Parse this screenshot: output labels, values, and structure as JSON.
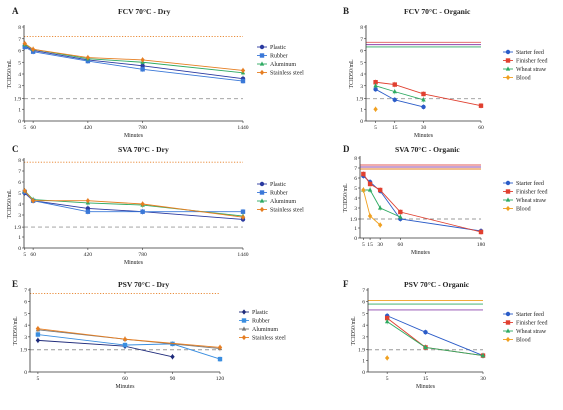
{
  "chart_data": [
    {
      "panel": "A",
      "title": "FCV 70°C - Dry",
      "type": "line",
      "xlabel": "Minutes",
      "ylabel": "TCID50/mL",
      "xlim": [
        0,
        1440
      ],
      "ylim": [
        0,
        8
      ],
      "xticks": [
        5,
        60,
        420,
        780,
        1440
      ],
      "xtick_labels": [
        "5",
        "60",
        "420",
        "780",
        "1440"
      ],
      "yticks": [
        0,
        1,
        1.9,
        3,
        4,
        5,
        6,
        7,
        8
      ],
      "ytick_labels": [
        "0",
        "1",
        "1.9",
        "3",
        "4",
        "5",
        "6",
        "7",
        "8"
      ],
      "ref_lines": [
        {
          "y": 7.2,
          "color": "#e67e22",
          "style": "dotted"
        },
        {
          "y": 1.9,
          "color": "#999999",
          "style": "dashed"
        }
      ],
      "series": [
        {
          "name": "Plastic",
          "color": "#2b3aa0",
          "marker": "circle",
          "x": [
            5,
            60,
            420,
            780,
            1440
          ],
          "y": [
            6.4,
            6.0,
            5.2,
            4.7,
            3.6
          ]
        },
        {
          "name": "Rubber",
          "color": "#3a78d8",
          "marker": "square",
          "x": [
            5,
            60,
            420,
            780,
            1440
          ],
          "y": [
            6.3,
            5.9,
            5.1,
            4.4,
            3.4
          ]
        },
        {
          "name": "Aluminum",
          "color": "#2eaa62",
          "marker": "triangle",
          "x": [
            5,
            60,
            420,
            780,
            1440
          ],
          "y": [
            6.5,
            6.1,
            5.3,
            5.0,
            4.1
          ]
        },
        {
          "name": "Stainless steel",
          "color": "#e67e22",
          "marker": "diamond",
          "x": [
            5,
            60,
            420,
            780,
            1440
          ],
          "y": [
            6.6,
            6.1,
            5.4,
            5.2,
            4.3
          ]
        }
      ]
    },
    {
      "panel": "B",
      "title": "FCV 70°C - Organic",
      "type": "line",
      "xlabel": "Minutes",
      "ylabel": "TCID50/mL",
      "xlim": [
        0,
        60
      ],
      "ylim": [
        0,
        8
      ],
      "xticks": [
        5,
        15,
        30,
        60
      ],
      "xtick_labels": [
        "5",
        "15",
        "30",
        "60"
      ],
      "yticks": [
        0,
        1,
        1.9,
        3,
        4,
        5,
        6,
        7,
        8
      ],
      "ytick_labels": [
        "0",
        "1",
        "1.9",
        "3",
        "4",
        "5",
        "6",
        "7",
        "8"
      ],
      "ref_lines": [
        {
          "y": 6.7,
          "color": "#e05a5a",
          "style": "solid"
        },
        {
          "y": 6.5,
          "color": "#8e44ad",
          "style": "solid"
        },
        {
          "y": 6.3,
          "color": "#2eaa62",
          "style": "solid"
        },
        {
          "y": 1.9,
          "color": "#999999",
          "style": "dashed"
        }
      ],
      "series": [
        {
          "name": "Starter feed",
          "color": "#2b5cc8",
          "marker": "circle",
          "x": [
            5,
            15,
            30
          ],
          "y": [
            2.7,
            1.8,
            1.2
          ]
        },
        {
          "name": "Finisher feed",
          "color": "#e04030",
          "marker": "square",
          "x": [
            5,
            15,
            30,
            60
          ],
          "y": [
            3.3,
            3.1,
            2.3,
            1.3
          ]
        },
        {
          "name": "Wheat straw",
          "color": "#2eaa62",
          "marker": "triangle",
          "x": [
            5,
            15,
            30
          ],
          "y": [
            3.0,
            2.5,
            1.8
          ]
        },
        {
          "name": "Blood",
          "color": "#f0a020",
          "marker": "diamond",
          "x": [
            5
          ],
          "y": [
            1.0
          ]
        }
      ]
    },
    {
      "panel": "C",
      "title": "SVA 70°C - Dry",
      "type": "line",
      "xlabel": "Minutes",
      "ylabel": "TCID50/mL",
      "xlim": [
        0,
        1440
      ],
      "ylim": [
        0,
        8
      ],
      "xticks": [
        5,
        60,
        420,
        780,
        1440
      ],
      "xtick_labels": [
        "5",
        "60",
        "420",
        "780",
        "1440"
      ],
      "yticks": [
        0,
        1,
        1.9,
        3,
        4,
        5,
        6,
        7,
        8
      ],
      "ytick_labels": [
        "0",
        "1",
        "1.9",
        "3",
        "4",
        "5",
        "6",
        "7",
        "8"
      ],
      "ref_lines": [
        {
          "y": 7.8,
          "color": "#e67e22",
          "style": "dotted"
        },
        {
          "y": 1.9,
          "color": "#999999",
          "style": "dashed"
        }
      ],
      "series": [
        {
          "name": "Plastic",
          "color": "#2b3aa0",
          "marker": "circle",
          "x": [
            5,
            60,
            420,
            780,
            1440
          ],
          "y": [
            5.0,
            4.3,
            3.6,
            3.3,
            2.6
          ]
        },
        {
          "name": "Rubber",
          "color": "#3a78d8",
          "marker": "square",
          "x": [
            5,
            60,
            420,
            780,
            1440
          ],
          "y": [
            5.1,
            4.3,
            3.3,
            3.3,
            3.3
          ]
        },
        {
          "name": "Aluminum",
          "color": "#2eaa62",
          "marker": "triangle",
          "x": [
            5,
            60,
            420,
            780,
            1440
          ],
          "y": [
            5.2,
            4.4,
            4.1,
            3.9,
            2.9
          ]
        },
        {
          "name": "Stainless steel",
          "color": "#e67e22",
          "marker": "diamond",
          "x": [
            5,
            60,
            420,
            780,
            1440
          ],
          "y": [
            5.2,
            4.3,
            4.3,
            4.0,
            2.8
          ]
        }
      ]
    },
    {
      "panel": "D",
      "title": "SVA 70°C - Organic",
      "type": "line",
      "xlabel": "Minutes",
      "ylabel": "TCID50/mL",
      "xlim": [
        0,
        180
      ],
      "ylim": [
        0,
        8
      ],
      "xticks": [
        5,
        15,
        30,
        60,
        180
      ],
      "xtick_labels": [
        "5",
        "15",
        "30",
        "60",
        "180"
      ],
      "yticks": [
        0,
        1,
        1.9,
        3,
        4,
        5,
        6,
        7,
        8
      ],
      "ytick_labels": [
        "0",
        "1",
        "1.9",
        "3",
        "4",
        "5",
        "6",
        "7",
        "8"
      ],
      "ref_lines": [
        {
          "y": 7.3,
          "color": "#e05a5a",
          "style": "solid"
        },
        {
          "y": 7.1,
          "color": "#8e44ad",
          "style": "solid"
        },
        {
          "y": 6.9,
          "color": "#e67e22",
          "style": "solid"
        },
        {
          "y": 1.9,
          "color": "#999999",
          "style": "dashed"
        }
      ],
      "series": [
        {
          "name": "Starter feed",
          "color": "#2b5cc8",
          "marker": "circle",
          "x": [
            5,
            15,
            30,
            60,
            180
          ],
          "y": [
            6.2,
            5.6,
            4.7,
            1.9,
            0.7
          ]
        },
        {
          "name": "Finisher feed",
          "color": "#e04030",
          "marker": "square",
          "x": [
            5,
            15,
            30,
            60,
            180
          ],
          "y": [
            6.4,
            5.4,
            4.8,
            2.6,
            0.6
          ]
        },
        {
          "name": "Wheat straw",
          "color": "#2eaa62",
          "marker": "triangle",
          "x": [
            5,
            15,
            30,
            60
          ],
          "y": [
            4.8,
            4.8,
            3.0,
            2.1
          ]
        },
        {
          "name": "Blood",
          "color": "#f0a020",
          "marker": "diamond",
          "x": [
            5,
            15,
            30
          ],
          "y": [
            4.8,
            2.2,
            1.3
          ]
        }
      ]
    },
    {
      "panel": "E",
      "title": "PSV 70°C - Dry",
      "type": "line",
      "xlabel": "Minutes",
      "ylabel": "TCID50/mL",
      "xlim": [
        0,
        120
      ],
      "ylim": [
        0,
        7
      ],
      "xticks": [
        5,
        60,
        90,
        120
      ],
      "xtick_labels": [
        "5",
        "60",
        "90",
        "120"
      ],
      "yticks": [
        0,
        1.9,
        3,
        4,
        5,
        6,
        7
      ],
      "ytick_labels": [
        "0",
        "1.9",
        "3",
        "4",
        "5",
        "6",
        "7"
      ],
      "ref_lines": [
        {
          "y": 6.7,
          "color": "#e67e22",
          "style": "dotted"
        },
        {
          "y": 1.9,
          "color": "#999999",
          "style": "dashed"
        }
      ],
      "series": [
        {
          "name": "Plastic",
          "color": "#1e2a7a",
          "marker": "diamond",
          "x": [
            5,
            60,
            90
          ],
          "y": [
            2.7,
            2.2,
            1.3
          ]
        },
        {
          "name": "Rubber",
          "color": "#3a8ee0",
          "marker": "square",
          "x": [
            5,
            60,
            90,
            120
          ],
          "y": [
            3.2,
            2.3,
            2.4,
            1.1
          ]
        },
        {
          "name": "Aluminum",
          "color": "#777777",
          "marker": "triangle",
          "x": [
            5,
            60,
            120
          ],
          "y": [
            3.6,
            2.8,
            2.0
          ]
        },
        {
          "name": "Stainless steel",
          "color": "#e67e22",
          "marker": "diamond",
          "x": [
            5,
            60,
            120
          ],
          "y": [
            3.7,
            2.8,
            2.1
          ]
        }
      ]
    },
    {
      "panel": "F",
      "title": "PSV 70°C - Organic",
      "type": "line",
      "xlabel": "Minutes",
      "ylabel": "TCID50/mL",
      "xlim": [
        0,
        30
      ],
      "ylim": [
        0,
        7
      ],
      "xticks": [
        5,
        15,
        30
      ],
      "xtick_labels": [
        "5",
        "15",
        "30"
      ],
      "yticks": [
        0,
        1,
        1.9,
        3,
        4,
        5,
        6,
        7
      ],
      "ytick_labels": [
        "0",
        "1",
        "1.9",
        "3",
        "4",
        "5",
        "6",
        "7"
      ],
      "ref_lines": [
        {
          "y": 6.1,
          "color": "#f0a020",
          "style": "solid"
        },
        {
          "y": 5.8,
          "color": "#2eaa62",
          "style": "solid"
        },
        {
          "y": 5.3,
          "color": "#8e44ad",
          "style": "solid"
        },
        {
          "y": 1.9,
          "color": "#999999",
          "style": "dashed"
        }
      ],
      "series": [
        {
          "name": "Starter feed",
          "color": "#2b5cc8",
          "marker": "circle",
          "x": [
            5,
            15,
            30
          ],
          "y": [
            4.8,
            3.4,
            1.4
          ]
        },
        {
          "name": "Finisher feed",
          "color": "#e04030",
          "marker": "square",
          "x": [
            5,
            15,
            30
          ],
          "y": [
            4.6,
            2.1,
            1.4
          ]
        },
        {
          "name": "Wheat straw",
          "color": "#2eaa62",
          "marker": "triangle",
          "x": [
            5,
            15,
            30
          ],
          "y": [
            4.3,
            2.1,
            1.4
          ]
        },
        {
          "name": "Blood",
          "color": "#f0a020",
          "marker": "diamond",
          "x": [
            5
          ],
          "y": [
            1.2
          ]
        }
      ]
    }
  ]
}
